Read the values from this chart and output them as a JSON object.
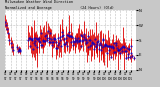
{
  "bg_color": "#c8c8c8",
  "plot_bg_color": "#ffffff",
  "grid_color": "#888888",
  "bar_color": "#dd0000",
  "avg_color": "#0000cc",
  "ylim": [
    0,
    360
  ],
  "yticks": [
    0,
    90,
    180,
    270,
    360
  ],
  "ytick_labels": [
    "N",
    "E",
    "S",
    "W",
    "N"
  ],
  "n_points": 200,
  "seed": 7
}
